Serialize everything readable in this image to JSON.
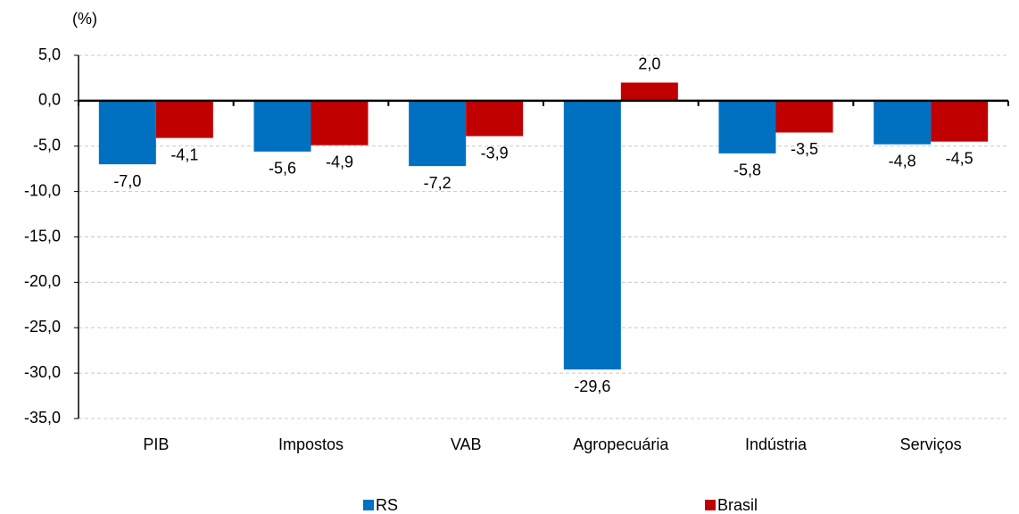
{
  "chart_data": {
    "type": "bar",
    "y_axis_label": "(%)",
    "categories": [
      "PIB",
      "Impostos",
      "VAB",
      "Agropecuária",
      "Indústria",
      "Serviços"
    ],
    "series": [
      {
        "name": "RS",
        "color": "#0070c0",
        "values": [
          -7.0,
          -5.6,
          -7.2,
          -29.6,
          -5.8,
          -4.8
        ],
        "value_labels": [
          "-7,0",
          "-5,6",
          "-7,2",
          "-29,6",
          "-5,8",
          "-4,8"
        ]
      },
      {
        "name": "Brasil",
        "color": "#c00000",
        "values": [
          -4.1,
          -4.9,
          -3.9,
          2.0,
          -3.5,
          -4.5
        ],
        "value_labels": [
          "-4,1",
          "-4,9",
          "-3,9",
          "2,0",
          "-3,5",
          "-4,5"
        ]
      }
    ],
    "ylim": [
      -35,
      5
    ],
    "yticks": [
      {
        "value": -35,
        "label": "-35,0"
      },
      {
        "value": -30,
        "label": "-30,0"
      },
      {
        "value": -25,
        "label": "-25,0"
      },
      {
        "value": -20,
        "label": "-20,0"
      },
      {
        "value": -15,
        "label": "-15,0"
      },
      {
        "value": -10,
        "label": "-10,0"
      },
      {
        "value": -5,
        "label": "-5,0"
      },
      {
        "value": 0,
        "label": "0,0"
      },
      {
        "value": 5,
        "label": "5,0"
      }
    ],
    "grid": true,
    "legend": "bottom"
  }
}
